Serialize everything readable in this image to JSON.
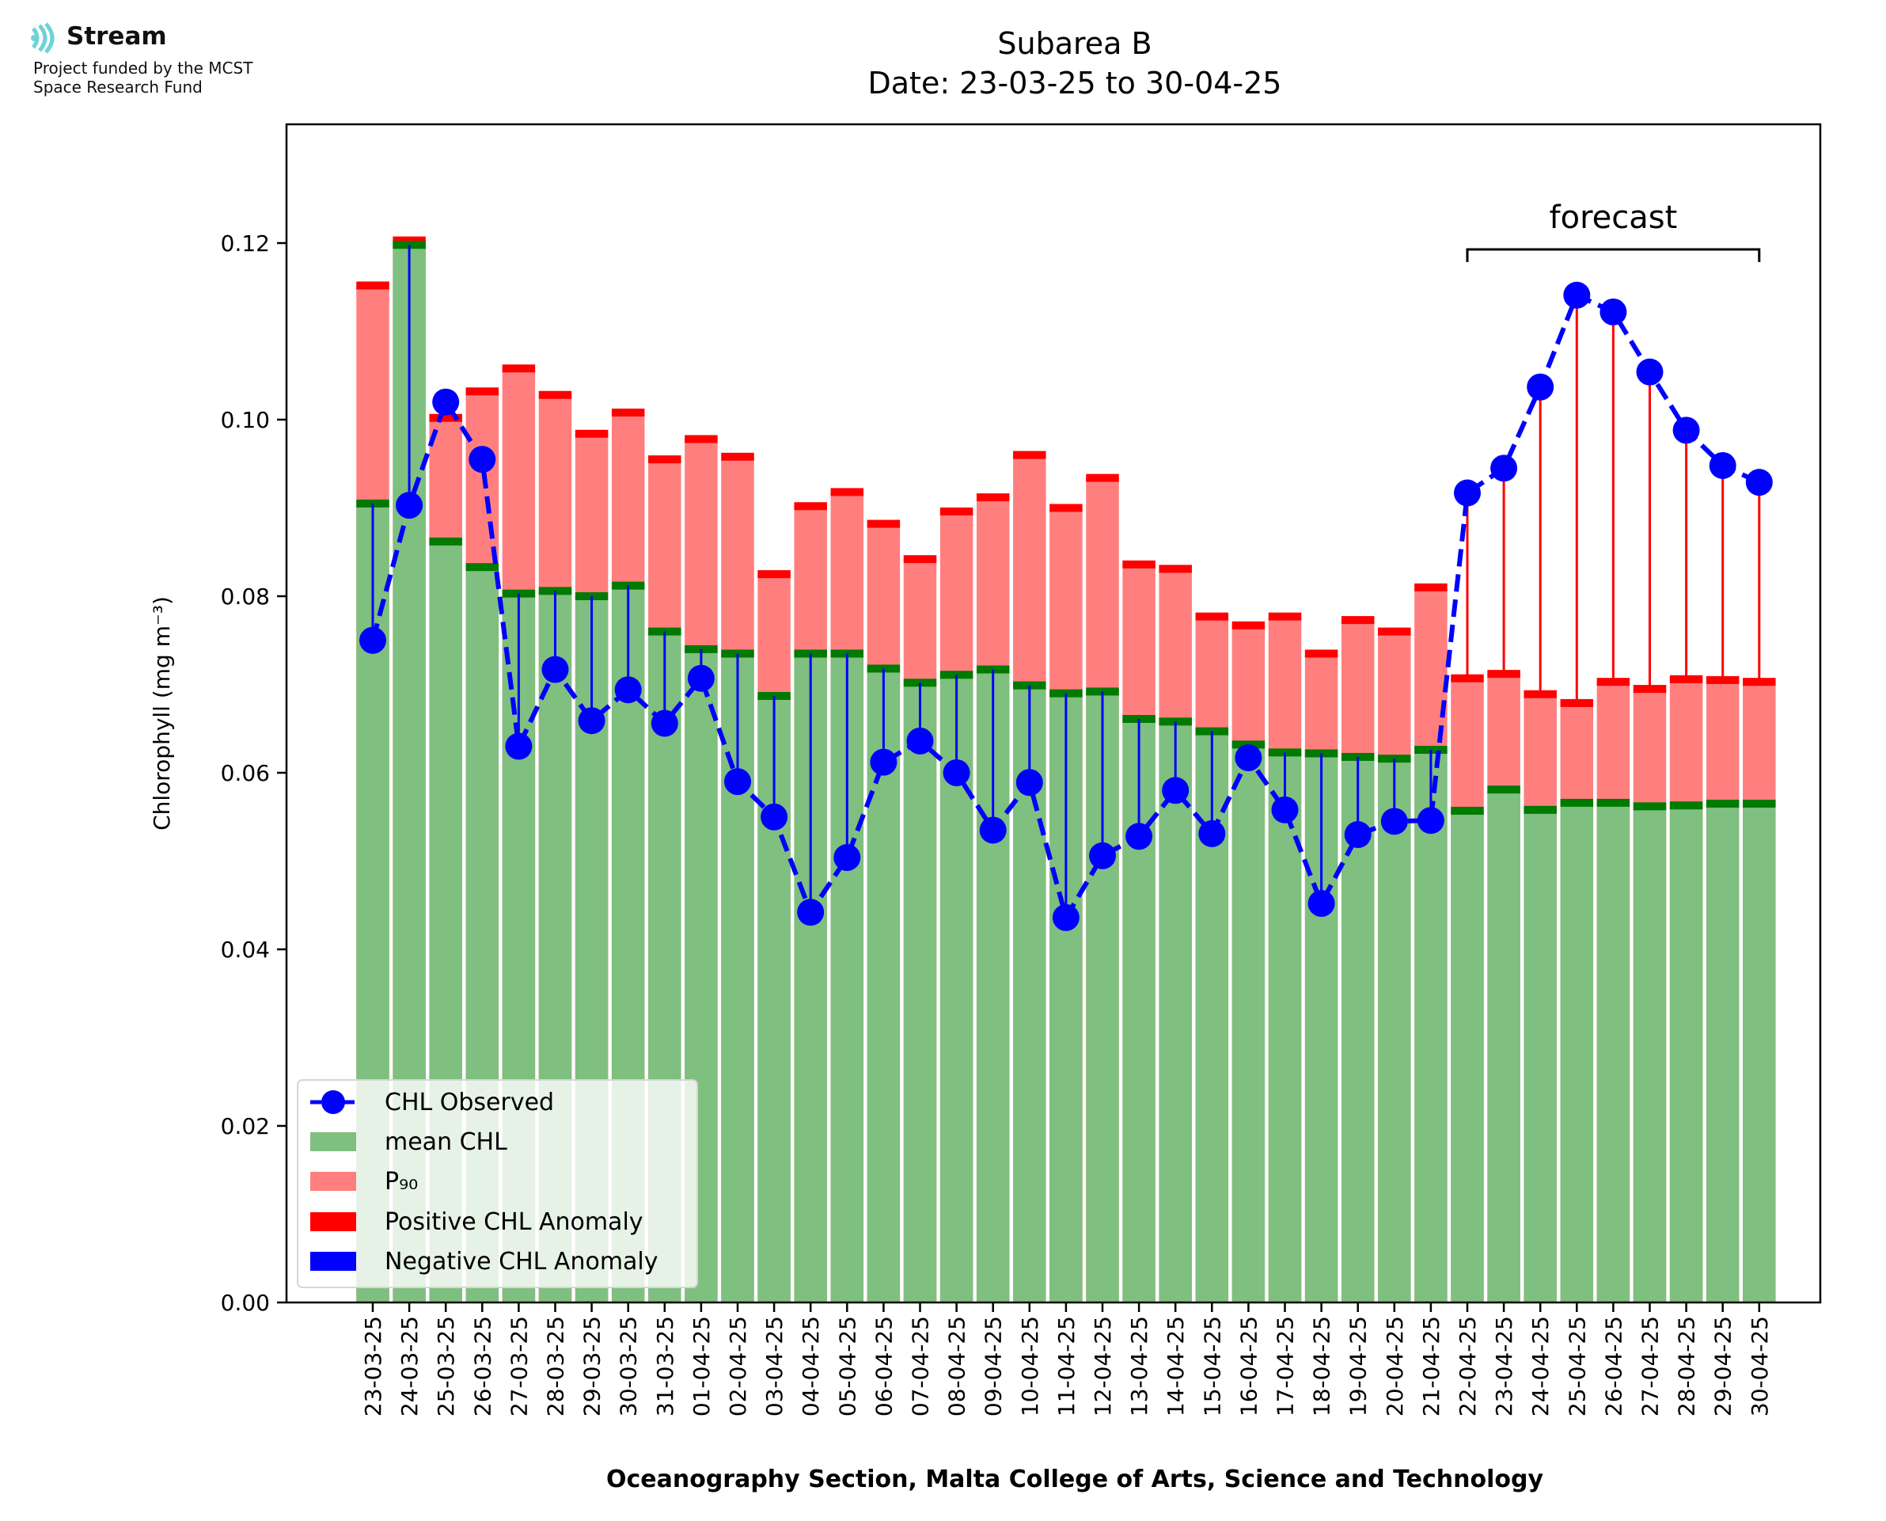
{
  "logo": {
    "brand": "Stream",
    "funding_line1": "Project funded by the MCST",
    "funding_line2": "Space Research Fund",
    "colors": {
      "waves": "#6fd3d6",
      "text": "#111111"
    }
  },
  "chart_data": {
    "type": "bar",
    "title": "Subarea B",
    "subtitle": "Date: 23-03-25 to 30-04-25",
    "xlabel": "Oceanography Section, Malta College of Arts, Science and Technology",
    "ylabel": "Chlorophyll (mg m⁻³)",
    "ylim": [
      0,
      0.1325
    ],
    "yticks": [
      0.0,
      0.02,
      0.04,
      0.06,
      0.08,
      0.1,
      0.12
    ],
    "ytick_labels": [
      "0.00",
      "0.02",
      "0.04",
      "0.06",
      "0.08",
      "0.10",
      "0.12"
    ],
    "grid": false,
    "legend_position": "lower-left",
    "annotation": {
      "text": "forecast",
      "from": "22-04-25",
      "to": "30-04-25"
    },
    "categories": [
      "23-03-25",
      "24-03-25",
      "25-03-25",
      "26-03-25",
      "27-03-25",
      "28-03-25",
      "29-03-25",
      "30-03-25",
      "31-03-25",
      "01-04-25",
      "02-04-25",
      "03-04-25",
      "04-04-25",
      "05-04-25",
      "06-04-25",
      "07-04-25",
      "08-04-25",
      "09-04-25",
      "10-04-25",
      "11-04-25",
      "12-04-25",
      "13-04-25",
      "14-04-25",
      "15-04-25",
      "16-04-25",
      "17-04-25",
      "18-04-25",
      "19-04-25",
      "20-04-25",
      "21-04-25",
      "22-04-25",
      "23-04-25",
      "24-04-25",
      "25-04-25",
      "26-04-25",
      "27-04-25",
      "28-04-25",
      "29-04-25",
      "30-04-25"
    ],
    "series": [
      {
        "name": "mean CHL",
        "color": "#7fbf7f",
        "edge_color": "#007a00",
        "values": [
          0.0905,
          0.1198,
          0.0862,
          0.0833,
          0.0803,
          0.0806,
          0.08,
          0.0812,
          0.076,
          0.074,
          0.0735,
          0.0687,
          0.0735,
          0.0735,
          0.0718,
          0.0702,
          0.0711,
          0.0717,
          0.0699,
          0.069,
          0.0692,
          0.0661,
          0.0658,
          0.0647,
          0.0632,
          0.0623,
          0.0622,
          0.0618,
          0.0616,
          0.0626,
          0.0557,
          0.0581,
          0.0558,
          0.0566,
          0.0566,
          0.0562,
          0.0563,
          0.0565,
          0.0565
        ]
      },
      {
        "name": "P₉₀",
        "color": "#ff7f7f",
        "edge_color": "#ff0000",
        "values": [
          0.1152,
          0.1203,
          0.1002,
          0.1032,
          0.1058,
          0.1028,
          0.0984,
          0.1008,
          0.0955,
          0.0978,
          0.0958,
          0.0825,
          0.0902,
          0.0918,
          0.0882,
          0.0842,
          0.0896,
          0.0912,
          0.096,
          0.09,
          0.0934,
          0.0836,
          0.0831,
          0.0777,
          0.0767,
          0.0777,
          0.0735,
          0.0773,
          0.076,
          0.081,
          0.0707,
          0.0712,
          0.0689,
          0.0679,
          0.0703,
          0.0695,
          0.0706,
          0.0705,
          0.0703
        ]
      },
      {
        "name": "CHL Observed",
        "color": "#0000ff",
        "values": [
          0.075,
          0.0903,
          0.102,
          0.0955,
          0.063,
          0.0717,
          0.0659,
          0.0694,
          0.0656,
          0.0707,
          0.059,
          0.055,
          0.0442,
          0.0504,
          0.0612,
          0.0636,
          0.06,
          0.0535,
          0.0589,
          0.0436,
          0.0506,
          0.0528,
          0.058,
          0.0531,
          0.0617,
          0.0558,
          0.0452,
          0.053,
          0.0545,
          0.0546,
          0.0917,
          0.0945,
          0.1037,
          0.1141,
          0.1122,
          0.1054,
          0.0988,
          0.0948,
          0.0929
        ]
      }
    ],
    "legend": [
      "CHL Observed",
      "mean CHL",
      "P₉₀",
      "Positive CHL Anomaly",
      "Negative CHL Anomaly"
    ],
    "colors": {
      "positive_anomaly": "#ff0000",
      "negative_anomaly": "#0000ff"
    }
  }
}
